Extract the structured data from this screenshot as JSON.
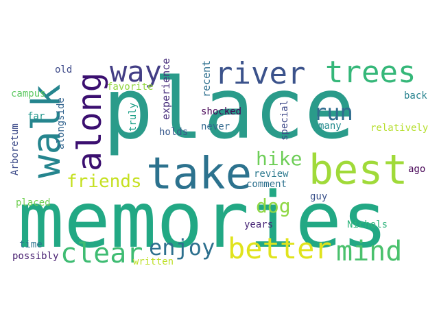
{
  "words": [
    {
      "text": "memories",
      "color": "#22a884",
      "vertical": false
    },
    {
      "text": "place",
      "color": "#2a9b8a",
      "vertical": false
    },
    {
      "text": "take",
      "color": "#2c728e",
      "vertical": false
    },
    {
      "text": "best",
      "color": "#a0da39",
      "vertical": false
    },
    {
      "text": "walk",
      "color": "#25858e",
      "vertical": true
    },
    {
      "text": "along",
      "color": "#3b0f70",
      "vertical": true
    },
    {
      "text": "river",
      "color": "#3b528b",
      "vertical": false
    },
    {
      "text": "trees",
      "color": "#35b779",
      "vertical": false
    },
    {
      "text": "way",
      "color": "#433e85",
      "vertical": false
    },
    {
      "text": "better",
      "color": "#e0e31c",
      "vertical": false
    },
    {
      "text": "mind",
      "color": "#4ac16d",
      "vertical": false
    },
    {
      "text": "clear",
      "color": "#3fbc73",
      "vertical": false
    },
    {
      "text": "enjoy",
      "color": "#2d708e",
      "vertical": false
    },
    {
      "text": "run",
      "color": "#2f6c8e",
      "vertical": false
    },
    {
      "text": "hike",
      "color": "#6ece58",
      "vertical": false
    },
    {
      "text": "friends",
      "color": "#c5e021",
      "vertical": false
    },
    {
      "text": "dog",
      "color": "#8fd744",
      "vertical": false
    },
    {
      "text": "experience",
      "color": "#472d7b",
      "vertical": true
    },
    {
      "text": "recent",
      "color": "#2e6f8e",
      "vertical": true
    },
    {
      "text": "favorite",
      "color": "#93d741",
      "vertical": false
    },
    {
      "text": "truly",
      "color": "#1fa088",
      "vertical": true
    },
    {
      "text": "shocked",
      "color": "#440154",
      "vertical": false
    },
    {
      "text": "never",
      "color": "#31688e",
      "vertical": false
    },
    {
      "text": "holds",
      "color": "#38598c",
      "vertical": false
    },
    {
      "text": "special",
      "color": "#3e4989",
      "vertical": true
    },
    {
      "text": "many",
      "color": "#238a8d",
      "vertical": false
    },
    {
      "text": "relatively",
      "color": "#b5de2b",
      "vertical": false
    },
    {
      "text": "back",
      "color": "#26828e",
      "vertical": false
    },
    {
      "text": "ago",
      "color": "#440154",
      "vertical": false
    },
    {
      "text": "review",
      "color": "#2a788e",
      "vertical": false
    },
    {
      "text": "comment",
      "color": "#2d718e",
      "vertical": false
    },
    {
      "text": "guy",
      "color": "#3b528b",
      "vertical": false
    },
    {
      "text": "years",
      "color": "#482777",
      "vertical": false
    },
    {
      "text": "Nichols",
      "color": "#2fb47c",
      "vertical": false
    },
    {
      "text": "old",
      "color": "#3e4a89",
      "vertical": false
    },
    {
      "text": "campus",
      "color": "#5ec962",
      "vertical": false
    },
    {
      "text": "far",
      "color": "#1f968b",
      "vertical": false
    },
    {
      "text": "alongside",
      "color": "#32648e",
      "vertical": true
    },
    {
      "text": "Arboretum",
      "color": "#3e4c8a",
      "vertical": true
    },
    {
      "text": "placed",
      "color": "#73d056",
      "vertical": false
    },
    {
      "text": "time",
      "color": "#2b748e",
      "vertical": false
    },
    {
      "text": "possibly",
      "color": "#482071",
      "vertical": false
    },
    {
      "text": "written",
      "color": "#bddf26",
      "vertical": false
    }
  ]
}
